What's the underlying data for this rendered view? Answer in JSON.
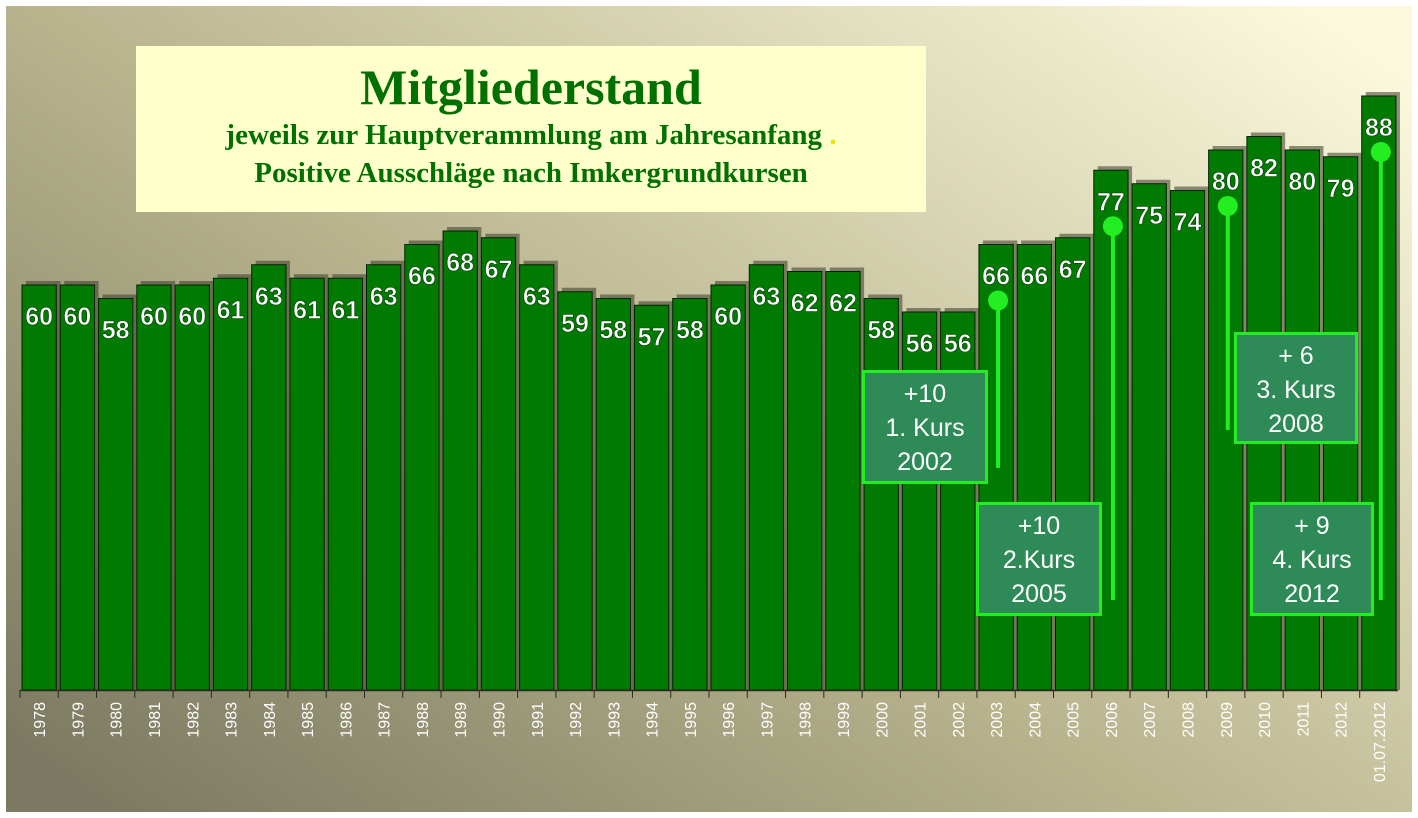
{
  "chart_data": {
    "type": "bar",
    "title": "Mitgliederstand",
    "subtitle_lines": [
      "jeweils zur Hauptveramm­lung am Jahresanfang",
      "Positive Ausschläge nach Imkergrundkursen"
    ],
    "categories": [
      "1978",
      "1979",
      "1980",
      "1981",
      "1982",
      "1983",
      "1984",
      "1985",
      "1986",
      "1987",
      "1988",
      "1989",
      "1990",
      "1991",
      "1992",
      "1993",
      "1994",
      "1995",
      "1996",
      "1997",
      "1998",
      "1999",
      "2000",
      "2001",
      "2002",
      "2003",
      "2004",
      "2005",
      "2006",
      "2007",
      "2008",
      "2009",
      "2010",
      "2011",
      "2012",
      "01.07.2012"
    ],
    "values": [
      60,
      60,
      58,
      60,
      60,
      61,
      63,
      61,
      61,
      63,
      66,
      68,
      67,
      63,
      59,
      58,
      57,
      58,
      60,
      63,
      62,
      62,
      58,
      56,
      56,
      66,
      66,
      67,
      77,
      75,
      74,
      80,
      82,
      80,
      79,
      88
    ],
    "ylim": [
      0,
      100
    ],
    "data_labels": true,
    "grid": false,
    "bar_color": "#007a00"
  },
  "annotations": [
    {
      "text": [
        "+10",
        "1. Kurs",
        "2002"
      ],
      "marker_category": "2003"
    },
    {
      "text": [
        "+10",
        "2.Kurs",
        "2005"
      ],
      "marker_category": "2006"
    },
    {
      "text": [
        "+ 6",
        "3. Kurs",
        "2008"
      ],
      "marker_category": "2009"
    },
    {
      "text": [
        "+ 9",
        "4. Kurs",
        "2012"
      ],
      "marker_category": "01.07.2012"
    }
  ]
}
